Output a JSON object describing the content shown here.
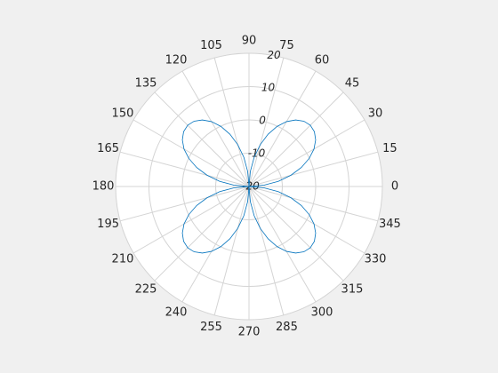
{
  "chart_data": {
    "type": "polar",
    "theta": [
      0,
      5,
      10,
      15,
      20,
      25,
      30,
      35,
      40,
      45,
      50,
      55,
      60,
      65,
      70,
      75,
      80,
      85,
      90,
      95,
      100,
      105,
      110,
      115,
      120,
      125,
      130,
      135,
      140,
      145,
      150,
      155,
      160,
      165,
      170,
      175,
      180,
      185,
      190,
      195,
      200,
      205,
      210,
      215,
      220,
      225,
      230,
      235,
      240,
      245,
      250,
      255,
      260,
      265,
      270,
      275,
      280,
      285,
      290,
      295,
      300,
      305,
      310,
      315,
      320,
      325,
      330,
      335,
      340,
      345,
      350,
      355,
      360
    ],
    "values": [
      -20,
      -15.5,
      -11.1,
      -7,
      -3.3,
      -0.1,
      2.5,
      4.4,
      5.6,
      6,
      5.6,
      4.4,
      2.5,
      -0.1,
      -3.3,
      -7,
      -11.1,
      -15.5,
      -20,
      -15.5,
      -11.1,
      -7,
      -3.3,
      -0.1,
      2.5,
      4.4,
      5.6,
      6,
      5.6,
      4.4,
      2.5,
      -0.1,
      -3.3,
      -7,
      -11.1,
      -15.5,
      -20,
      -15.5,
      -11.1,
      -7,
      -3.3,
      -0.1,
      2.5,
      4.4,
      5.6,
      6,
      5.6,
      4.4,
      2.5,
      -0.1,
      -3.3,
      -7,
      -11.1,
      -15.5,
      -20,
      -15.5,
      -11.1,
      -7,
      -3.3,
      -0.1,
      2.5,
      4.4,
      5.6,
      6,
      5.6,
      4.4,
      2.5,
      -0.1,
      -3.3,
      -7,
      -11.1,
      -15.5,
      -20
    ],
    "color": "#0072bd",
    "rlim": [
      -20,
      20
    ],
    "rticks": [
      -20,
      -10,
      0,
      10,
      20
    ],
    "thetaticks": [
      0,
      15,
      30,
      45,
      60,
      75,
      90,
      105,
      120,
      135,
      150,
      165,
      180,
      195,
      210,
      225,
      240,
      255,
      270,
      285,
      300,
      315,
      330,
      345
    ],
    "grid": true
  }
}
